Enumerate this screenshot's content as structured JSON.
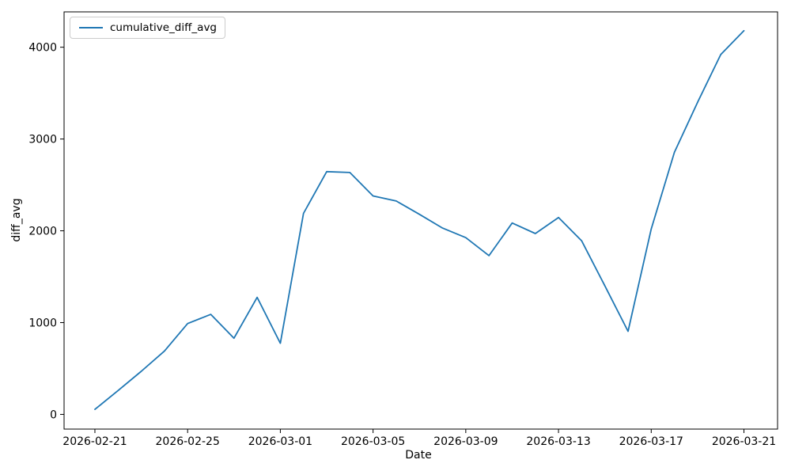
{
  "chart_data": {
    "type": "line",
    "title": "",
    "xlabel": "Date",
    "ylabel": "diff_avg",
    "grid": false,
    "legend_position": "upper left",
    "line_color": "#1f77b4",
    "spine_color": "#000000",
    "legend_edge_color": "#cccccc",
    "x": [
      "2026-02-21",
      "2026-02-22",
      "2026-02-23",
      "2026-02-24",
      "2026-02-25",
      "2026-02-26",
      "2026-02-27",
      "2026-02-28",
      "2026-03-01",
      "2026-03-02",
      "2026-03-03",
      "2026-03-04",
      "2026-03-05",
      "2026-03-06",
      "2026-03-07",
      "2026-03-08",
      "2026-03-09",
      "2026-03-10",
      "2026-03-11",
      "2026-03-12",
      "2026-03-13",
      "2026-03-14",
      "2026-03-15",
      "2026-03-16",
      "2026-03-17",
      "2026-03-18",
      "2026-03-19",
      "2026-03-20",
      "2026-03-21"
    ],
    "series": [
      {
        "name": "cumulative_diff_avg",
        "color": "#1f77b4",
        "values": [
          55,
          260,
          470,
          690,
          990,
          1090,
          830,
          1275,
          775,
          2190,
          2645,
          2635,
          2380,
          2325,
          2180,
          2030,
          1925,
          1730,
          2085,
          1970,
          2145,
          1890,
          1400,
          905,
          2020,
          2855,
          3400,
          3920,
          4180
        ]
      }
    ],
    "x_ticks": [
      "2026-02-21",
      "2026-02-25",
      "2026-03-01",
      "2026-03-05",
      "2026-03-09",
      "2026-03-13",
      "2026-03-17",
      "2026-03-21"
    ],
    "y_ticks": [
      0,
      1000,
      2000,
      3000,
      4000
    ],
    "xlim_day_offsets": [
      -1.33,
      29.45
    ],
    "ylim": [
      -160,
      4385
    ]
  }
}
